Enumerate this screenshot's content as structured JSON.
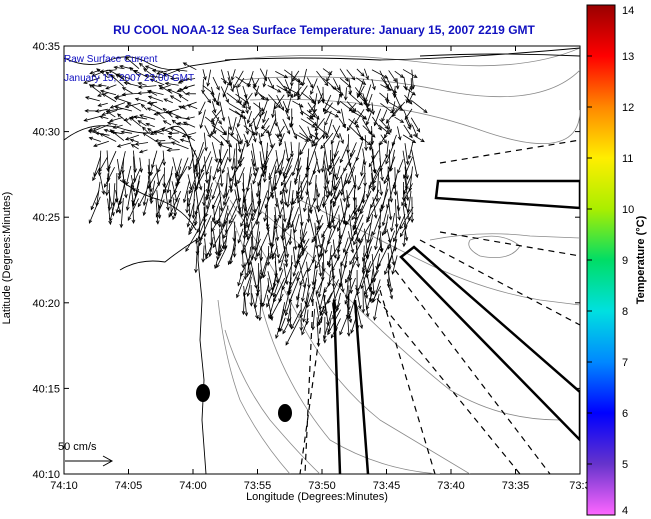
{
  "chart_data": {
    "type": "vector-field",
    "title": "RU COOL  NOAA-12  Sea Surface Temperature:  January 15, 2007 2219 GMT",
    "xlabel": "Longitude (Degrees:Minutes)",
    "ylabel": "Latitude (Degrees:Minutes)",
    "x_ticks": [
      "74:10",
      "74:05",
      "74:00",
      "73:55",
      "73:50",
      "73:45",
      "73:40",
      "73:35",
      "73:3"
    ],
    "y_ticks": [
      "40:35",
      "40:30",
      "40:25",
      "40:20",
      "40:15",
      "40:10"
    ],
    "xlim_deg_west": [
      74.1667,
      73.5
    ],
    "ylim_deg_north": [
      40.1667,
      40.5833
    ],
    "legend": {
      "line1": "Raw Surface Current",
      "line2": "January 15, 2007 23:00 GMT",
      "scale_label": "50 cm/s"
    },
    "colorbar": {
      "label": "Temperature (°C)",
      "range": [
        4,
        14
      ],
      "ticks": [
        "4",
        "5",
        "6",
        "7",
        "8",
        "9",
        "10",
        "11",
        "12",
        "13",
        "14"
      ]
    },
    "stations": [
      {
        "lon": 73.98,
        "lat": 40.245
      },
      {
        "lon": 73.87,
        "lat": 40.22
      }
    ],
    "grid": false
  }
}
